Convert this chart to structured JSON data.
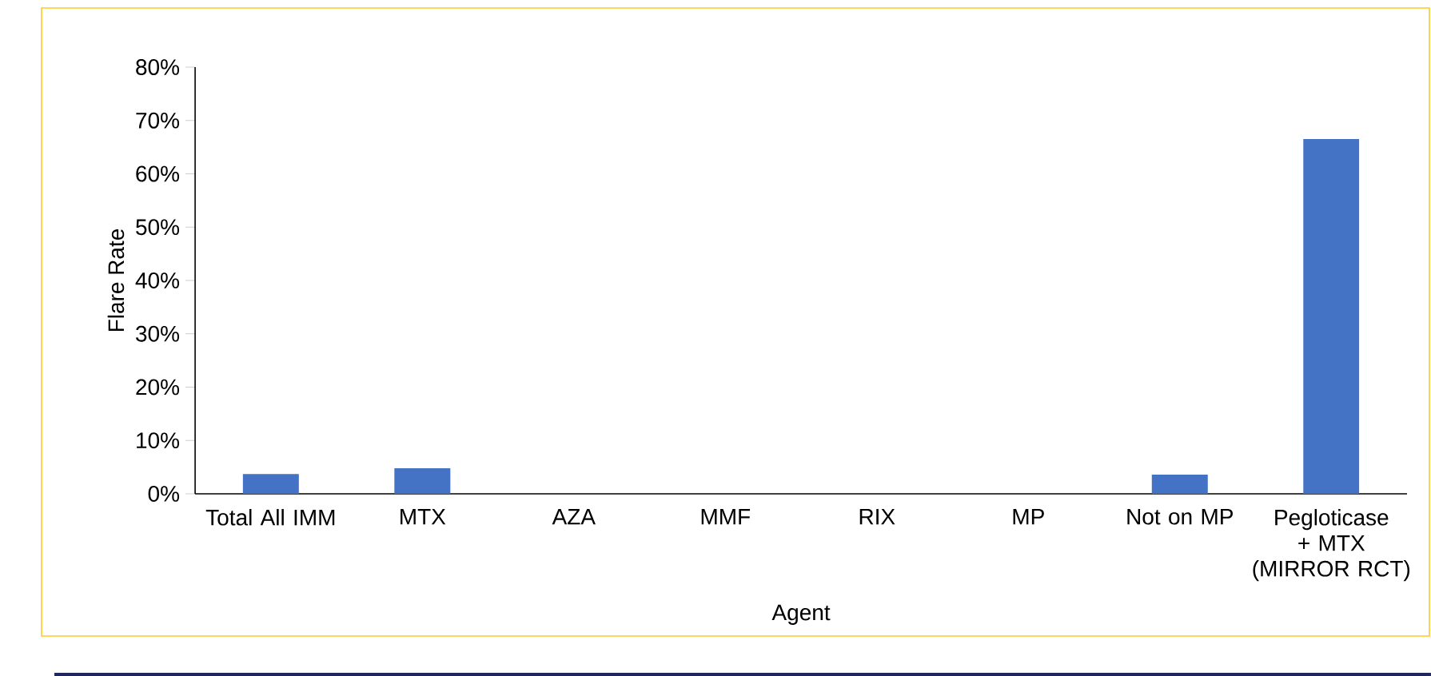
{
  "chart_data": {
    "type": "bar",
    "xlabel": "Agent",
    "ylabel": "Flare Rate",
    "categories": [
      "Total All IMM",
      "MTX",
      "AZA",
      "MMF",
      "RIX",
      "MP",
      "Not on MP",
      "Pegloticase + MTX (MIRROR RCT)"
    ],
    "values": [
      3.7,
      4.8,
      0,
      0,
      0,
      0,
      3.6,
      66.5
    ],
    "color": "#4472c4",
    "ylim": [
      0,
      80
    ],
    "yticks": [
      {
        "value": 0,
        "label": "0%"
      },
      {
        "value": 10,
        "label": "10%"
      },
      {
        "value": 20,
        "label": "20%"
      },
      {
        "value": 30,
        "label": "30%"
      },
      {
        "value": 40,
        "label": "40%"
      },
      {
        "value": 50,
        "label": "50%"
      },
      {
        "value": 60,
        "label": "60%"
      },
      {
        "value": 70,
        "label": "70%"
      },
      {
        "value": 80,
        "label": "80%"
      }
    ],
    "grid": false
  }
}
